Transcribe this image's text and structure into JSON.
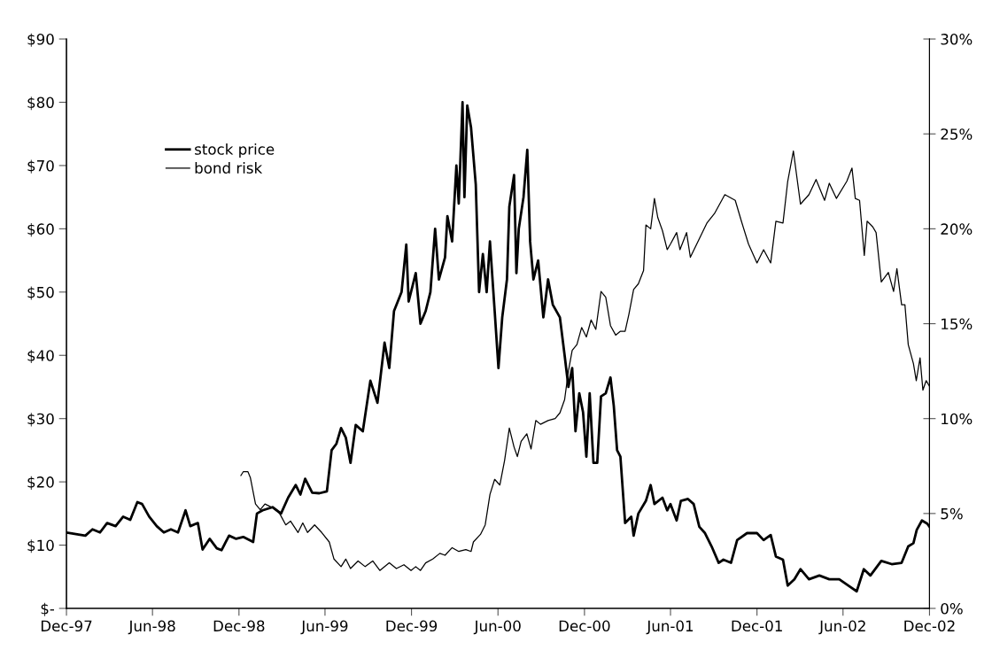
{
  "chart_data": {
    "type": "line",
    "xlim": [
      "1997-12-01",
      "2002-12-01"
    ],
    "xticks": [
      {
        "value": "1997-12-01",
        "label": "Dec-97"
      },
      {
        "value": "1998-06-01",
        "label": "Jun-98"
      },
      {
        "value": "1998-12-01",
        "label": "Dec-98"
      },
      {
        "value": "1999-06-01",
        "label": "Jun-99"
      },
      {
        "value": "1999-12-01",
        "label": "Dec-99"
      },
      {
        "value": "2000-06-01",
        "label": "Jun-00"
      },
      {
        "value": "2000-12-01",
        "label": "Dec-00"
      },
      {
        "value": "2001-06-01",
        "label": "Jun-01"
      },
      {
        "value": "2001-12-01",
        "label": "Dec-01"
      },
      {
        "value": "2002-06-01",
        "label": "Jun-02"
      },
      {
        "value": "2002-12-01",
        "label": "Dec-02"
      }
    ],
    "ylim": [
      0,
      90
    ],
    "yticks": [
      {
        "value": 0,
        "label": "$-"
      },
      {
        "value": 10,
        "label": "$10"
      },
      {
        "value": 20,
        "label": "$20"
      },
      {
        "value": 30,
        "label": "$30"
      },
      {
        "value": 40,
        "label": "$40"
      },
      {
        "value": 50,
        "label": "$50"
      },
      {
        "value": 60,
        "label": "$60"
      },
      {
        "value": 70,
        "label": "$70"
      },
      {
        "value": 80,
        "label": "$80"
      },
      {
        "value": 90,
        "label": "$90"
      }
    ],
    "y2lim": [
      0,
      30
    ],
    "y2ticks": [
      {
        "value": 0,
        "label": "0%"
      },
      {
        "value": 5,
        "label": "5%"
      },
      {
        "value": 10,
        "label": "10%"
      },
      {
        "value": 15,
        "label": "15%"
      },
      {
        "value": 20,
        "label": "20%"
      },
      {
        "value": 25,
        "label": "25%"
      },
      {
        "value": 30,
        "label": "30%"
      }
    ],
    "grid": false,
    "legend": "top left",
    "marker": "none",
    "line_style": "solid",
    "series": [
      {
        "name": "stock price",
        "color": "#000000",
        "x": [
          "1997-12-01",
          "1998-01-10",
          "1998-01-25",
          "1998-02-10",
          "1998-02-25",
          "1998-03-15",
          "1998-03-31",
          "1998-04-15",
          "1998-04-30",
          "1998-05-10",
          "1998-05-25",
          "1998-06-10",
          "1998-06-25",
          "1998-07-10",
          "1998-07-25",
          "1998-08-10",
          "1998-08-20",
          "1998-09-05",
          "1998-09-15",
          "1998-09-30",
          "1998-10-15",
          "1998-10-25",
          "1998-11-10",
          "1998-11-25",
          "1998-12-10",
          "1998-12-31",
          "1999-01-08",
          "1999-01-20",
          "1999-02-10",
          "1999-02-28",
          "1999-03-15",
          "1999-03-31",
          "1999-04-10",
          "1999-04-20",
          "1999-05-05",
          "1999-05-20",
          "1999-06-05",
          "1999-06-15",
          "1999-06-25",
          "1999-07-05",
          "1999-07-15",
          "1999-07-25",
          "1999-08-05",
          "1999-08-20",
          "1999-09-05",
          "1999-09-20",
          "1999-10-05",
          "1999-10-15",
          "1999-10-25",
          "1999-11-10",
          "1999-11-20",
          "1999-11-25",
          "1999-12-10",
          "1999-12-20",
          "1999-12-31",
          "2000-01-10",
          "2000-01-20",
          "2000-01-28",
          "2000-02-10",
          "2000-02-15",
          "2000-02-25",
          "2000-03-05",
          "2000-03-10",
          "2000-03-18",
          "2000-03-22",
          "2000-03-28",
          "2000-04-05",
          "2000-04-15",
          "2000-04-22",
          "2000-04-30",
          "2000-05-08",
          "2000-05-15",
          "2000-05-25",
          "2000-06-02",
          "2000-06-10",
          "2000-06-20",
          "2000-06-25",
          "2000-07-05",
          "2000-07-10",
          "2000-07-15",
          "2000-07-25",
          "2000-08-02",
          "2000-08-08",
          "2000-08-15",
          "2000-08-25",
          "2000-09-05",
          "2000-09-15",
          "2000-09-25",
          "2000-10-10",
          "2000-10-20",
          "2000-10-28",
          "2000-11-05",
          "2000-11-12",
          "2000-11-20",
          "2000-11-28",
          "2000-12-05",
          "2000-12-12",
          "2000-12-20",
          "2000-12-28",
          "2001-01-05",
          "2001-01-15",
          "2001-01-25",
          "2001-02-01",
          "2001-02-08",
          "2001-02-15",
          "2001-02-25",
          "2001-03-10",
          "2001-03-15",
          "2001-03-25",
          "2001-04-10",
          "2001-04-20",
          "2001-04-28",
          "2001-05-15",
          "2001-05-25",
          "2001-06-01",
          "2001-06-14",
          "2001-06-23",
          "2001-07-08",
          "2001-07-20",
          "2001-08-01",
          "2001-08-13",
          "2001-08-27",
          "2001-09-11",
          "2001-09-21",
          "2001-10-07",
          "2001-10-20",
          "2001-11-10",
          "2001-12-01",
          "2001-12-15",
          "2001-12-30",
          "2002-01-10",
          "2002-01-25",
          "2002-02-04",
          "2002-02-18",
          "2002-03-03",
          "2002-03-21",
          "2002-04-12",
          "2002-05-03",
          "2002-05-24",
          "2002-06-16",
          "2002-06-30",
          "2002-07-15",
          "2002-07-29",
          "2002-08-21",
          "2002-09-12",
          "2002-10-03",
          "2002-10-17",
          "2002-10-28",
          "2002-11-04",
          "2002-11-15",
          "2002-11-26",
          "2002-12-01"
        ],
        "values": [
          12,
          11.5,
          12.5,
          12,
          13.5,
          13,
          14.5,
          14,
          16.8,
          16.5,
          14.5,
          13,
          12,
          12.5,
          12,
          15.5,
          13,
          13.5,
          9.3,
          11,
          9.5,
          9.2,
          11.5,
          11,
          11.3,
          10.5,
          15,
          15.5,
          16,
          15,
          17.5,
          19.5,
          18,
          20.5,
          18.3,
          18.2,
          18.5,
          25,
          26,
          28.5,
          27,
          23,
          29,
          28,
          36,
          32.5,
          42,
          38,
          47,
          50,
          57.5,
          48.5,
          53,
          45,
          47,
          50,
          60,
          52,
          55.5,
          62,
          58,
          70,
          64,
          80,
          65,
          79.5,
          76,
          67,
          50,
          56,
          50,
          58,
          47,
          38,
          46,
          52,
          63.5,
          68.5,
          53,
          60,
          65,
          72.5,
          58,
          52,
          55,
          46,
          52,
          48,
          46,
          40,
          35,
          38,
          28,
          34,
          31,
          24,
          34,
          23,
          23,
          33.5,
          34,
          36.5,
          32,
          25,
          24,
          13.5,
          14.5,
          11.5,
          15,
          17,
          19.5,
          16.5,
          17.5,
          15.5,
          16.5,
          13.9,
          17,
          17.3,
          16.5,
          12.9,
          11.9,
          9.8,
          7.2,
          7.7,
          7.2,
          10.8,
          11.9,
          11.9,
          10.8,
          11.6,
          8.2,
          7.7,
          3.6,
          4.6,
          6.2,
          4.6,
          5.2,
          4.6,
          4.6,
          3.4,
          2.7,
          6.2,
          5.2,
          7.5,
          7,
          7.2,
          9.8,
          10.3,
          12.4,
          13.9,
          13.4,
          12.9
        ]
      },
      {
        "name": "bond risk",
        "color": "#000000",
        "axis": "y2",
        "x": [
          "1998-12-05",
          "1998-12-10",
          "1998-12-20",
          "1998-12-25",
          "1999-01-05",
          "1999-01-15",
          "1999-01-25",
          "1999-02-10",
          "1999-02-25",
          "1999-03-10",
          "1999-03-20",
          "1999-04-05",
          "1999-04-15",
          "1999-04-25",
          "1999-05-10",
          "1999-05-25",
          "1999-06-10",
          "1999-06-20",
          "1999-07-05",
          "1999-07-15",
          "1999-07-25",
          "1999-08-10",
          "1999-08-25",
          "1999-09-10",
          "1999-09-25",
          "1999-10-15",
          "1999-10-30",
          "1999-11-15",
          "1999-11-30",
          "1999-12-10",
          "1999-12-20",
          "1999-12-31",
          "2000-01-15",
          "2000-01-30",
          "2000-02-10",
          "2000-02-25",
          "2000-03-10",
          "2000-03-25",
          "2000-04-05",
          "2000-04-10",
          "2000-04-25",
          "2000-05-05",
          "2000-05-15",
          "2000-05-25",
          "2000-06-05",
          "2000-06-15",
          "2000-06-25",
          "2000-07-05",
          "2000-07-12",
          "2000-07-20",
          "2000-08-01",
          "2000-08-10",
          "2000-08-20",
          "2000-08-30",
          "2000-09-15",
          "2000-09-30",
          "2000-10-10",
          "2000-10-20",
          "2000-10-28",
          "2000-11-05",
          "2000-11-15",
          "2000-11-25",
          "2000-12-05",
          "2000-12-15",
          "2000-12-25",
          "2001-01-05",
          "2001-01-15",
          "2001-01-25",
          "2001-02-05",
          "2001-02-15",
          "2001-02-25",
          "2001-03-05",
          "2001-03-15",
          "2001-03-25",
          "2001-04-05",
          "2001-04-10",
          "2001-04-20",
          "2001-04-28",
          "2001-05-05",
          "2001-05-15",
          "2001-05-25",
          "2001-06-01",
          "2001-06-14",
          "2001-06-21",
          "2001-07-05",
          "2001-07-13",
          "2001-08-17",
          "2001-09-02",
          "2001-09-24",
          "2001-10-16",
          "2001-10-29",
          "2001-11-13",
          "2001-12-01",
          "2001-12-15",
          "2001-12-30",
          "2002-01-10",
          "2002-01-25",
          "2002-02-04",
          "2002-02-16",
          "2002-03-03",
          "2002-03-21",
          "2002-04-05",
          "2002-04-23",
          "2002-05-03",
          "2002-05-18",
          "2002-06-09",
          "2002-06-20",
          "2002-06-27",
          "2002-07-06",
          "2002-07-16",
          "2002-07-22",
          "2002-08-03",
          "2002-08-10",
          "2002-08-21",
          "2002-09-05",
          "2002-09-16",
          "2002-09-23",
          "2002-10-03",
          "2002-10-10",
          "2002-10-17",
          "2002-10-28",
          "2002-11-03",
          "2002-11-11",
          "2002-11-17",
          "2002-11-24",
          "2002-12-01"
        ],
        "values": [
          7,
          7.2,
          7.2,
          6.9,
          5.5,
          5.2,
          5.5,
          5.3,
          5,
          4.4,
          4.6,
          4,
          4.5,
          4,
          4.4,
          4,
          3.5,
          2.6,
          2.2,
          2.6,
          2.1,
          2.5,
          2.2,
          2.5,
          2,
          2.4,
          2.1,
          2.3,
          2,
          2.2,
          2,
          2.4,
          2.6,
          2.9,
          2.8,
          3.2,
          3,
          3.1,
          3,
          3.5,
          3.9,
          4.4,
          6,
          6.8,
          6.5,
          7.8,
          9.5,
          8.5,
          8,
          8.8,
          9.2,
          8.4,
          9.9,
          9.7,
          9.9,
          10,
          10.3,
          11,
          12.5,
          13.6,
          13.9,
          14.8,
          14.3,
          15.2,
          14.7,
          16.7,
          16.4,
          14.9,
          14.4,
          14.6,
          14.6,
          15.5,
          16.8,
          17.1,
          17.8,
          20.2,
          20,
          21.6,
          20.6,
          19.9,
          18.9,
          19.2,
          19.8,
          18.9,
          19.8,
          18.5,
          20.3,
          20.8,
          21.8,
          21.5,
          20.4,
          19.2,
          18.2,
          18.9,
          18.2,
          20.4,
          20.3,
          22.5,
          24.1,
          21.3,
          21.8,
          22.6,
          21.5,
          22.4,
          21.6,
          22.5,
          23.2,
          21.6,
          21.5,
          18.6,
          20.4,
          20.1,
          19.8,
          17.2,
          17.7,
          16.7,
          17.9,
          16,
          16,
          13.9,
          12.9,
          12,
          13.2,
          11.5,
          12,
          11.7
        ]
      }
    ]
  }
}
